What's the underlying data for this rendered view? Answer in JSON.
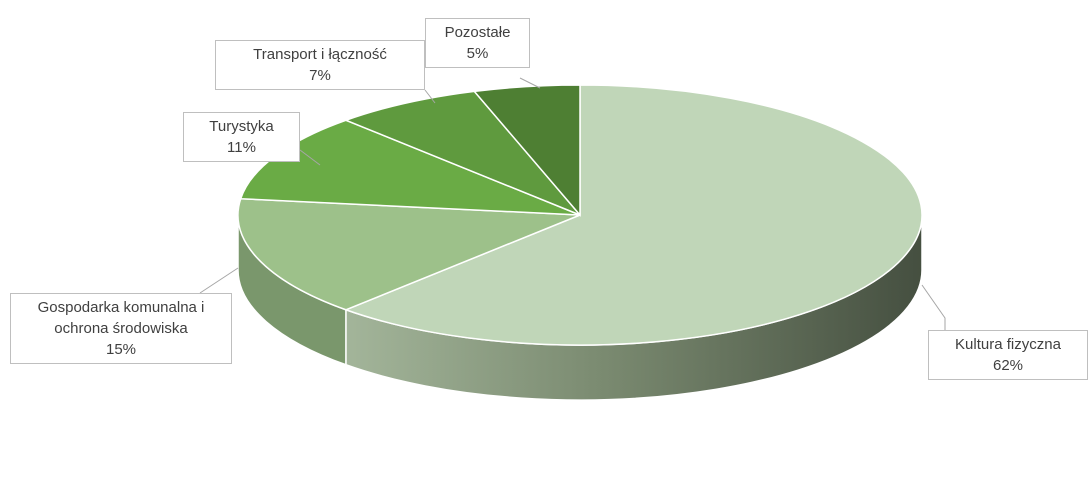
{
  "chart_data": {
    "type": "pie",
    "categories": [
      "Kultura fizyczna",
      "Gospodarka komunalna i ochrona środowiska",
      "Turystyka",
      "Transport i łączność",
      "Pozostałe"
    ],
    "values": [
      62,
      15,
      11,
      7,
      5
    ],
    "value_labels": [
      "62%",
      "15%",
      "11%",
      "7%",
      "5%"
    ],
    "colors": [
      "#c0d6b8",
      "#9dc18a",
      "#6aab45",
      "#5f9a3e",
      "#4e7f33"
    ]
  }
}
